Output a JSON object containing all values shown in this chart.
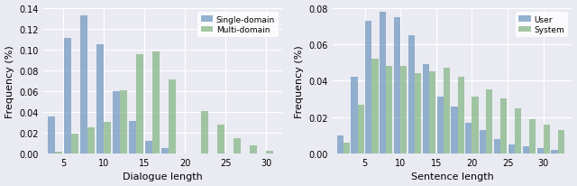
{
  "left": {
    "xlabel": "Dialogue length",
    "ylabel": "Frequency (%)",
    "ylim": [
      0,
      0.14
    ],
    "yticks": [
      0.0,
      0.02,
      0.04,
      0.06,
      0.08,
      0.1,
      0.12,
      0.14
    ],
    "xticks": [
      5,
      10,
      15,
      20,
      25,
      30
    ],
    "positions": [
      4,
      6,
      8,
      10,
      12,
      14,
      16,
      18,
      20,
      22,
      24,
      26,
      28,
      30
    ],
    "single_domain": [
      0.036,
      0.111,
      0.133,
      0.105,
      0.06,
      0.031,
      0.012,
      0.005,
      0.0,
      0.0,
      0.0,
      0.0,
      0.0,
      0.0
    ],
    "multi_domain": [
      0.002,
      0.019,
      0.025,
      0.03,
      0.061,
      0.095,
      0.098,
      0.071,
      0.0,
      0.041,
      0.028,
      0.015,
      0.008,
      0.003
    ],
    "legend": [
      "Single-domain",
      "Multi-domain"
    ],
    "bar_width": 0.9,
    "color_single": "#7b9fc4",
    "color_multi": "#8dbb8d",
    "xlim": [
      2.5,
      32
    ]
  },
  "right": {
    "xlabel": "Sentence length",
    "ylabel": "Frequency (%)",
    "ylim": [
      0,
      0.08
    ],
    "yticks": [
      0.0,
      0.02,
      0.04,
      0.06,
      0.08
    ],
    "xticks": [
      5,
      10,
      15,
      20,
      25,
      30
    ],
    "positions": [
      2,
      4,
      6,
      8,
      10,
      12,
      14,
      16,
      18,
      20,
      22,
      24,
      26,
      28,
      30,
      32
    ],
    "user": [
      0.01,
      0.042,
      0.073,
      0.078,
      0.075,
      0.065,
      0.049,
      0.031,
      0.026,
      0.017,
      0.013,
      0.008,
      0.005,
      0.004,
      0.003,
      0.002
    ],
    "system": [
      0.006,
      0.027,
      0.052,
      0.048,
      0.048,
      0.044,
      0.045,
      0.047,
      0.042,
      0.031,
      0.035,
      0.03,
      0.025,
      0.019,
      0.016,
      0.013
    ],
    "legend": [
      "User",
      "System"
    ],
    "bar_width": 0.9,
    "color_user": "#7b9fc4",
    "color_system": "#8dbb8d",
    "xlim": [
      0.5,
      34
    ]
  },
  "bg_color": "#eaeaf2",
  "grid_color": "#ffffff"
}
